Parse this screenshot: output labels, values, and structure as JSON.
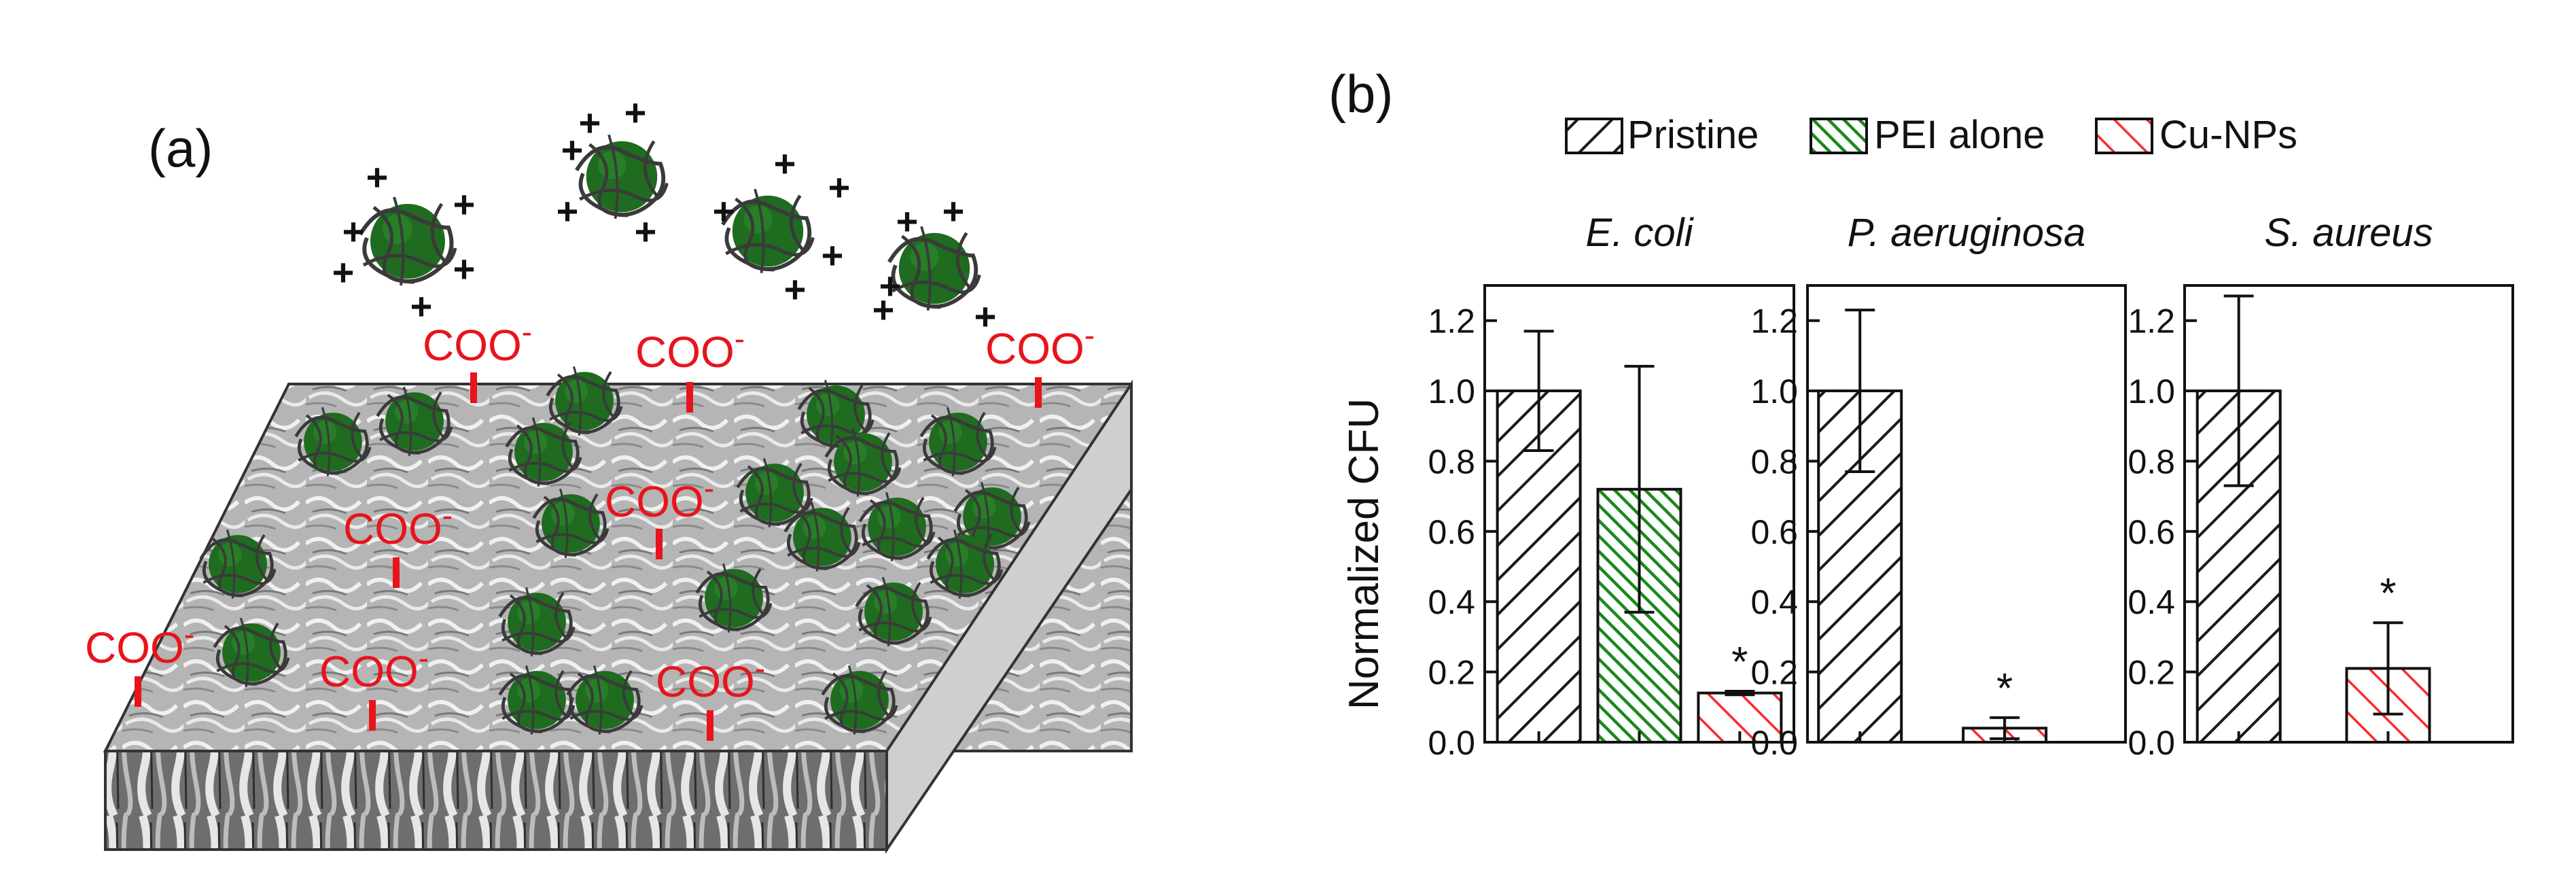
{
  "panel_a": {
    "label": "(a)",
    "carboxylate_label": "COO",
    "carboxylate_charge": "-",
    "nanoparticle_charge": "+",
    "colors": {
      "nanoparticle": "#1f6b1f",
      "label_red": "#e8141c",
      "membrane_top": "#b8b8b8",
      "membrane_side": "#c8c8c8"
    }
  },
  "panel_b": {
    "label": "(b)",
    "legend": [
      {
        "name": "Pristine",
        "color": "#1a1a1a"
      },
      {
        "name": "PEI alone",
        "color": "#1a8a1a"
      },
      {
        "name": "Cu-NPs",
        "color": "#ff2a2a"
      }
    ]
  },
  "chart_data": [
    {
      "type": "bar",
      "title": "E. coli",
      "ylabel": "Normalized CFU",
      "xlabel": "",
      "ylim": [
        0,
        1.3
      ],
      "yticks": [
        "0.0",
        "0.2",
        "0.4",
        "0.6",
        "0.8",
        "1.0",
        "1.2"
      ],
      "bars": [
        {
          "series": "Pristine",
          "value": 1.0,
          "error": 0.17,
          "significant": false
        },
        {
          "series": "PEI alone",
          "value": 0.72,
          "error": 0.35,
          "significant": false
        },
        {
          "series": "Cu-NPs",
          "value": 0.14,
          "error": 0.005,
          "significant": true
        }
      ],
      "significance_marker": "*"
    },
    {
      "type": "bar",
      "title": "P. aeruginosa",
      "ylabel": "",
      "xlabel": "",
      "ylim": [
        0,
        1.3
      ],
      "yticks": [
        "0.0",
        "0.2",
        "0.4",
        "0.6",
        "0.8",
        "1.0",
        "1.2"
      ],
      "bars": [
        {
          "series": "Pristine",
          "value": 1.0,
          "error": 0.23,
          "significant": false
        },
        {
          "series": "Cu-NPs",
          "value": 0.04,
          "error": 0.03,
          "significant": true
        }
      ],
      "significance_marker": "*"
    },
    {
      "type": "bar",
      "title": "S. aureus",
      "ylabel": "",
      "xlabel": "",
      "ylim": [
        0,
        1.3
      ],
      "yticks": [
        "0.0",
        "0.2",
        "0.4",
        "0.6",
        "0.8",
        "1.0",
        "1.2"
      ],
      "bars": [
        {
          "series": "Pristine",
          "value": 1.0,
          "error": 0.27,
          "significant": false
        },
        {
          "series": "Cu-NPs",
          "value": 0.21,
          "error": 0.13,
          "significant": true
        }
      ],
      "significance_marker": "*"
    }
  ]
}
